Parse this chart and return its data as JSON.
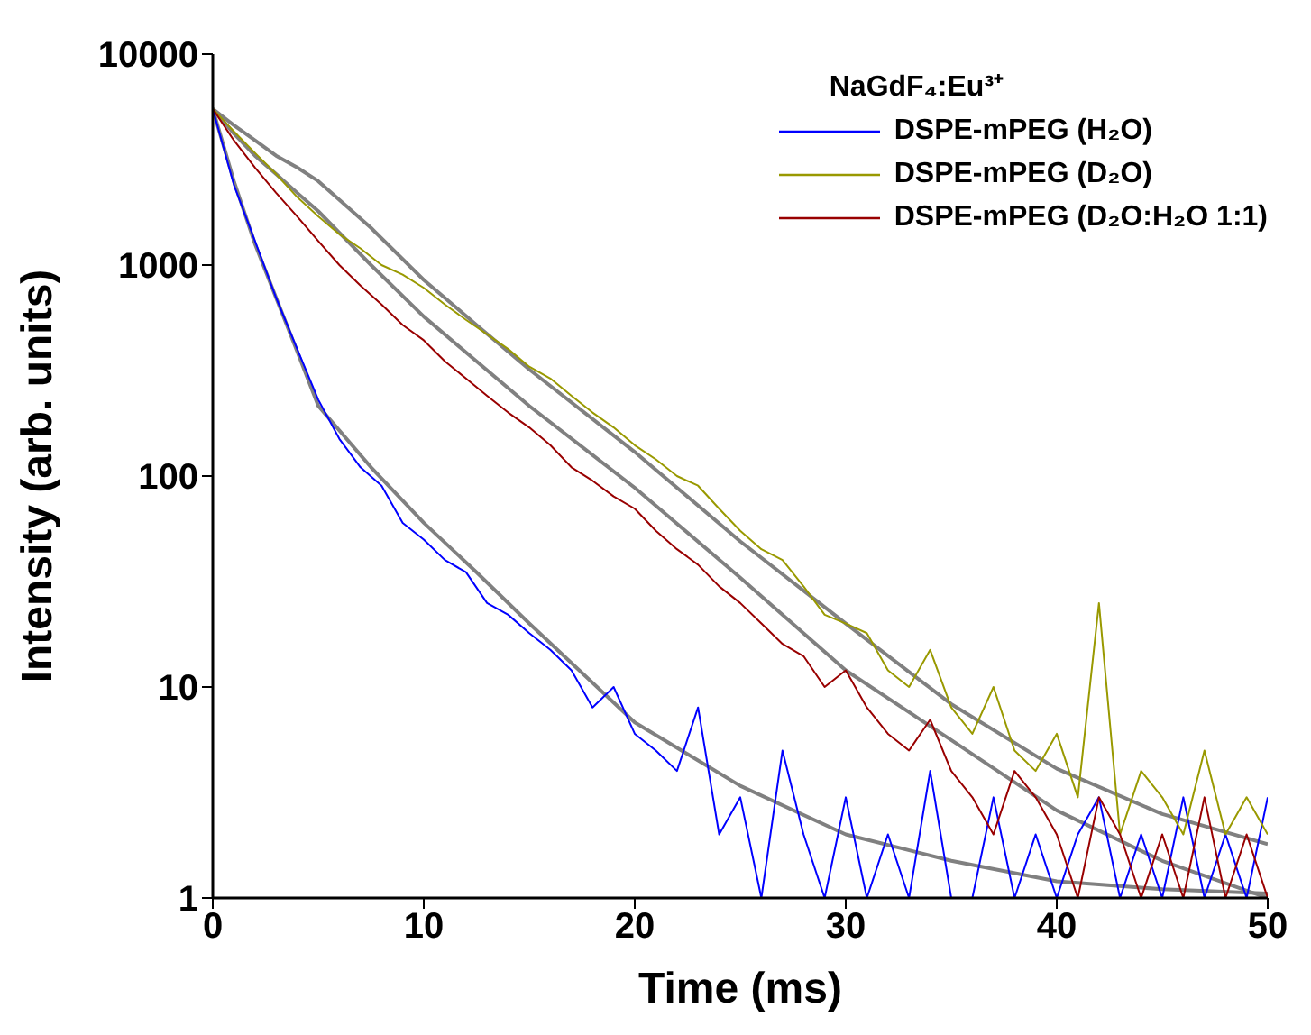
{
  "chart_data": {
    "type": "line",
    "xlabel": "Time (ms)",
    "ylabel": "Intensity (arb. units)",
    "legend_title": "NaGdF₄:Eu³⁺",
    "legend": "top right",
    "log": "y",
    "xlim": [
      0,
      50
    ],
    "xticks": [
      0,
      10,
      20,
      30,
      40,
      50
    ],
    "ylim": [
      1,
      10000
    ],
    "yticks": [
      1,
      10,
      100,
      1000,
      10000
    ],
    "x": [
      0,
      1,
      2,
      3,
      4,
      5,
      6,
      7,
      8,
      9,
      10,
      11,
      12,
      13,
      14,
      15,
      16,
      17,
      18,
      19,
      20,
      21,
      22,
      23,
      24,
      25,
      26,
      27,
      28,
      29,
      30,
      31,
      32,
      33,
      34,
      35,
      36,
      37,
      38,
      39,
      40,
      41,
      42,
      43,
      44,
      45,
      46,
      47,
      48,
      49,
      50
    ],
    "series": [
      {
        "name": "DSPE-mPEG (H₂O)",
        "color": "#0000ff",
        "values": [
          5500,
          2400,
          1300,
          700,
          400,
          230,
          150,
          110,
          90,
          60,
          50,
          40,
          35,
          25,
          22,
          18,
          15,
          12,
          8,
          10,
          6,
          5,
          4,
          8,
          2,
          3,
          1,
          5,
          2,
          1,
          3,
          1,
          2,
          1,
          4,
          1,
          1,
          3,
          1,
          2,
          1,
          2,
          3,
          1,
          2,
          1,
          3,
          1,
          2,
          1,
          3
        ]
      },
      {
        "name": "DSPE-mPEG (D₂O)",
        "color": "#999900",
        "values": [
          5500,
          4300,
          3400,
          2700,
          2100,
          1700,
          1400,
          1200,
          1000,
          900,
          780,
          650,
          550,
          470,
          400,
          330,
          290,
          240,
          200,
          170,
          140,
          120,
          100,
          90,
          70,
          55,
          45,
          40,
          30,
          22,
          20,
          18,
          12,
          10,
          15,
          8,
          6,
          10,
          5,
          4,
          6,
          3,
          25,
          2,
          4,
          3,
          2,
          5,
          2,
          3,
          2
        ]
      },
      {
        "name": "DSPE-mPEG (D₂O:H₂O 1:1)",
        "color": "#990000",
        "values": [
          5500,
          3900,
          2900,
          2200,
          1700,
          1300,
          1000,
          800,
          650,
          520,
          440,
          350,
          290,
          240,
          200,
          170,
          140,
          110,
          95,
          80,
          70,
          55,
          45,
          38,
          30,
          25,
          20,
          16,
          14,
          10,
          12,
          8,
          6,
          5,
          7,
          4,
          3,
          2,
          4,
          3,
          2,
          1,
          3,
          2,
          1,
          2,
          1,
          3,
          1,
          2,
          1
        ]
      },
      {
        "type": "line",
        "color": "#808080",
        "x": [
          0,
          1,
          2,
          3,
          4,
          5,
          7.5,
          10,
          12.5,
          15,
          20,
          25,
          30,
          35,
          40,
          45,
          50
        ],
        "values": [
          5500,
          2500,
          1260,
          700,
          390,
          215,
          110,
          60,
          35,
          20,
          6.8,
          3.4,
          2,
          1.5,
          1.2,
          1.1,
          1.05
        ]
      },
      {
        "type": "line",
        "color": "#808080",
        "x": [
          0,
          1,
          2,
          3,
          4,
          5,
          7.5,
          10,
          12.5,
          15,
          20,
          25,
          30,
          35,
          40,
          45,
          50
        ],
        "values": [
          5500,
          4600,
          3900,
          3300,
          2900,
          2500,
          1500,
          850,
          520,
          320,
          130,
          49,
          20,
          8.3,
          4.1,
          2.5,
          1.8
        ]
      },
      {
        "type": "line",
        "color": "#808080",
        "x": [
          0,
          1,
          2,
          3,
          4,
          5,
          7.5,
          10,
          12.5,
          15,
          20,
          25,
          30,
          35,
          40,
          45,
          50
        ],
        "values": [
          5500,
          4200,
          3300,
          2700,
          2200,
          1800,
          1000,
          570,
          350,
          215,
          88,
          33,
          12,
          5.6,
          2.6,
          1.5,
          1
        ]
      }
    ]
  }
}
